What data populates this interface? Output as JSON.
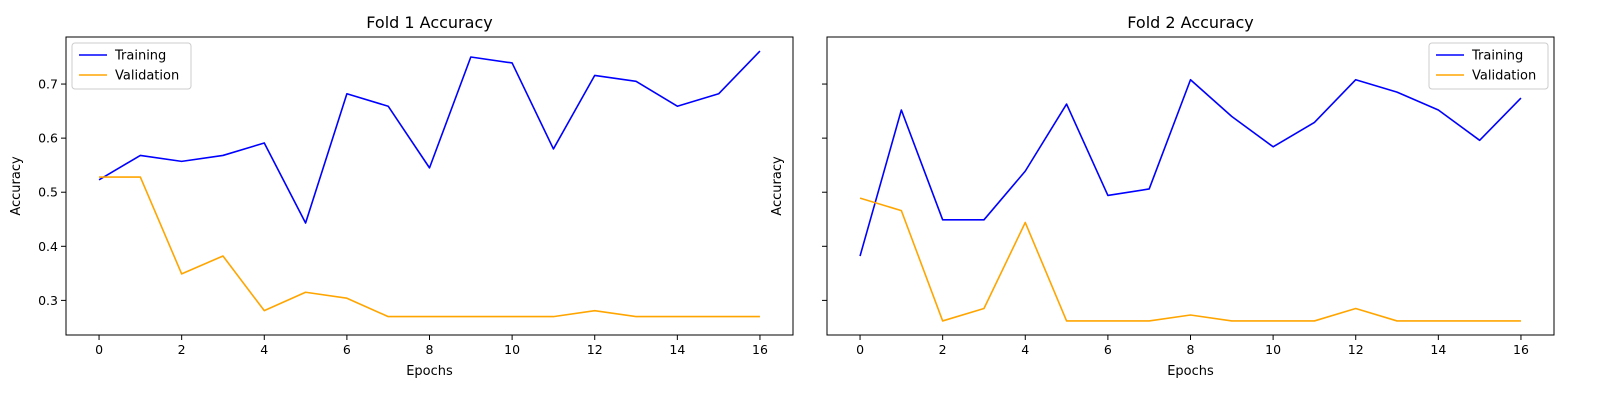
{
  "chart_data": [
    {
      "type": "line",
      "title": "Fold 1 Accuracy",
      "xlabel": "Epochs",
      "ylabel": "Accuracy",
      "xlim": [
        -0.8,
        16.8
      ],
      "ylim": [
        0.236,
        0.787
      ],
      "xticks": [
        0,
        2,
        4,
        6,
        8,
        10,
        12,
        14,
        16
      ],
      "yticks": [
        0.3,
        0.4,
        0.5,
        0.6,
        0.7
      ],
      "legend_position": "upper-left",
      "x": [
        0,
        1,
        2,
        3,
        4,
        5,
        6,
        7,
        8,
        9,
        10,
        11,
        12,
        13,
        14,
        15,
        16
      ],
      "series": [
        {
          "name": "Training",
          "color": "#0000ff",
          "values": [
            0.523,
            0.568,
            0.557,
            0.568,
            0.591,
            0.443,
            0.682,
            0.659,
            0.545,
            0.75,
            0.739,
            0.58,
            0.716,
            0.705,
            0.659,
            0.682,
            0.761
          ]
        },
        {
          "name": "Validation",
          "color": "#ffa500",
          "values": [
            0.528,
            0.528,
            0.349,
            0.382,
            0.281,
            0.315,
            0.304,
            0.27,
            0.27,
            0.27,
            0.27,
            0.27,
            0.281,
            0.27,
            0.27,
            0.27,
            0.27
          ]
        }
      ]
    },
    {
      "type": "line",
      "title": "Fold 2 Accuracy",
      "xlabel": "Epochs",
      "ylabel": "Accuracy",
      "xlim": [
        -0.8,
        16.8
      ],
      "ylim": [
        0.236,
        0.787
      ],
      "xticks": [
        0,
        2,
        4,
        6,
        8,
        10,
        12,
        14,
        16
      ],
      "yticks": [
        0.3,
        0.4,
        0.5,
        0.6,
        0.7
      ],
      "show_ytick_labels": false,
      "legend_position": "upper-right",
      "x": [
        0,
        1,
        2,
        3,
        4,
        5,
        6,
        7,
        8,
        9,
        10,
        11,
        12,
        13,
        14,
        15,
        16
      ],
      "series": [
        {
          "name": "Training",
          "color": "#0000ff",
          "values": [
            0.382,
            0.652,
            0.449,
            0.449,
            0.539,
            0.663,
            0.494,
            0.506,
            0.708,
            0.64,
            0.584,
            0.629,
            0.708,
            0.685,
            0.652,
            0.596,
            0.674
          ]
        },
        {
          "name": "Validation",
          "color": "#ffa500",
          "values": [
            0.489,
            0.466,
            0.262,
            0.285,
            0.444,
            0.262,
            0.262,
            0.262,
            0.273,
            0.262,
            0.262,
            0.262,
            0.285,
            0.262,
            0.262,
            0.262,
            0.262
          ]
        }
      ]
    }
  ]
}
